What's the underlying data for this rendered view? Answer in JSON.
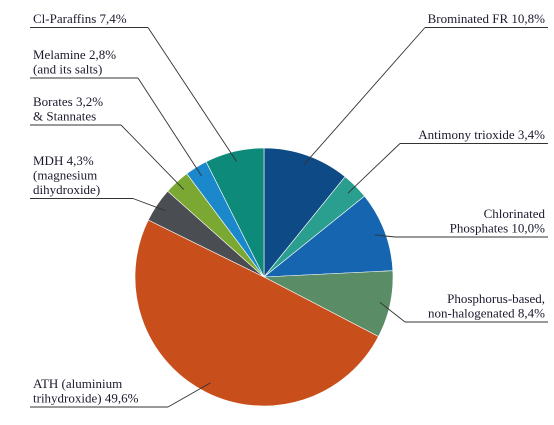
{
  "chart_data": {
    "type": "pie",
    "start_angle_deg": 0,
    "direction": "clockwise",
    "slices": [
      {
        "label_lines": [
          "Brominated FR 10,8%"
        ],
        "value": 10.8,
        "color": "#0e4a85"
      },
      {
        "label_lines": [
          "Antimony trioxide 3,4%"
        ],
        "value": 3.4,
        "color": "#2a9f8f"
      },
      {
        "label_lines": [
          "Chlorinated",
          "Phosphates 10,0%"
        ],
        "value": 10.0,
        "color": "#1565b0"
      },
      {
        "label_lines": [
          "Phosphorus-based,",
          "non-halogenated 8,4%"
        ],
        "value": 8.4,
        "color": "#5a8c66"
      },
      {
        "label_lines": [
          "ATH (aluminium",
          "trihydroxide) 49,6%"
        ],
        "value": 49.6,
        "color": "#c84f1c"
      },
      {
        "label_lines": [
          "MDH 4,3%",
          "(magnesium",
          "dihydroxide)"
        ],
        "value": 4.3,
        "color": "#4a4e52"
      },
      {
        "label_lines": [
          "Borates 3,2%",
          "& Stannates"
        ],
        "value": 3.2,
        "color": "#7aa832"
      },
      {
        "label_lines": [
          "Melamine 2,8%",
          "(and its salts)"
        ],
        "value": 2.8,
        "color": "#1c88cc"
      },
      {
        "label_lines": [
          "Cl-Paraffins 7,4%"
        ],
        "value": 7.4,
        "color": "#0e8a7a"
      }
    ]
  }
}
